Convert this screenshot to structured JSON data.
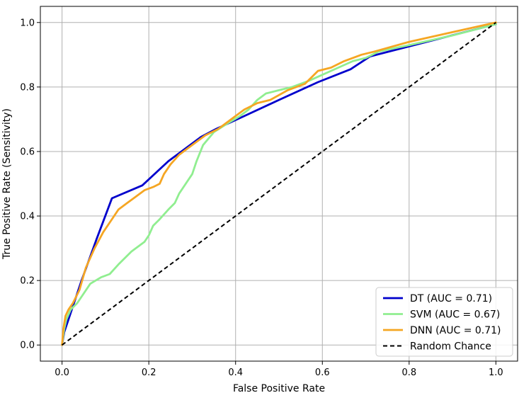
{
  "chart_data": {
    "type": "line",
    "title": "",
    "xlabel": "False Positive Rate",
    "ylabel": "True Positive Rate (Sensitivity)",
    "xlim": [
      -0.05,
      1.05
    ],
    "ylim": [
      -0.05,
      1.05
    ],
    "xticks": [
      "0.0",
      "0.2",
      "0.4",
      "0.6",
      "0.8",
      "1.0"
    ],
    "yticks": [
      "0.0",
      "0.2",
      "0.4",
      "0.6",
      "0.8",
      "1.0"
    ],
    "grid": true,
    "legend_position": "lower-right",
    "series": [
      {
        "name": "DT (AUC = 0.71)",
        "color": "#0000cc",
        "style": "solid",
        "x": [
          0,
          0.005,
          0.02,
          0.045,
          0.08,
          0.115,
          0.185,
          0.245,
          0.32,
          0.355,
          0.42,
          0.5,
          0.59,
          0.665,
          0.71,
          1.0
        ],
        "y": [
          0,
          0.04,
          0.1,
          0.2,
          0.33,
          0.455,
          0.495,
          0.57,
          0.645,
          0.67,
          0.71,
          0.76,
          0.815,
          0.855,
          0.895,
          0.995
        ]
      },
      {
        "name": "SVM (AUC = 0.67)",
        "color": "#90ee90",
        "style": "solid",
        "x": [
          0,
          0.005,
          0.01,
          0.02,
          0.035,
          0.05,
          0.065,
          0.09,
          0.11,
          0.13,
          0.16,
          0.19,
          0.2,
          0.21,
          0.225,
          0.245,
          0.26,
          0.27,
          0.285,
          0.3,
          0.31,
          0.325,
          0.35,
          0.385,
          0.41,
          0.43,
          0.45,
          0.47,
          0.5,
          0.53,
          0.57,
          0.62,
          0.67,
          0.7,
          0.73,
          0.8,
          0.9,
          1.0
        ],
        "y": [
          0,
          0.05,
          0.08,
          0.11,
          0.13,
          0.16,
          0.19,
          0.21,
          0.22,
          0.25,
          0.29,
          0.32,
          0.34,
          0.37,
          0.39,
          0.42,
          0.44,
          0.47,
          0.5,
          0.53,
          0.57,
          0.62,
          0.66,
          0.69,
          0.71,
          0.73,
          0.76,
          0.78,
          0.79,
          0.8,
          0.82,
          0.85,
          0.88,
          0.89,
          0.91,
          0.93,
          0.96,
          0.995
        ]
      },
      {
        "name": "DNN (AUC = 0.71)",
        "color": "#f5a623",
        "style": "solid",
        "x": [
          0,
          0.003,
          0.008,
          0.015,
          0.025,
          0.04,
          0.055,
          0.075,
          0.095,
          0.115,
          0.13,
          0.15,
          0.17,
          0.19,
          0.21,
          0.225,
          0.235,
          0.25,
          0.27,
          0.29,
          0.31,
          0.33,
          0.36,
          0.39,
          0.42,
          0.45,
          0.48,
          0.52,
          0.56,
          0.59,
          0.62,
          0.65,
          0.69,
          0.72,
          0.8,
          0.9,
          1.0
        ],
        "y": [
          0,
          0.05,
          0.09,
          0.11,
          0.13,
          0.17,
          0.24,
          0.3,
          0.35,
          0.39,
          0.42,
          0.44,
          0.46,
          0.48,
          0.49,
          0.5,
          0.53,
          0.56,
          0.59,
          0.61,
          0.63,
          0.65,
          0.67,
          0.7,
          0.73,
          0.75,
          0.76,
          0.79,
          0.81,
          0.85,
          0.86,
          0.88,
          0.9,
          0.91,
          0.94,
          0.97,
          1.0
        ]
      },
      {
        "name": "Random Chance",
        "color": "#000000",
        "style": "dashed",
        "x": [
          0,
          1
        ],
        "y": [
          0,
          1
        ]
      }
    ]
  }
}
